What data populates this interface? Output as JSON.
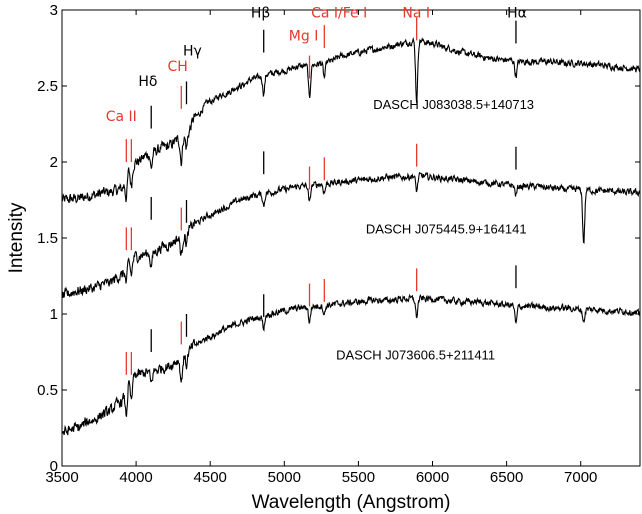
{
  "chart_data": {
    "type": "line",
    "title": "",
    "xlabel": "Wavelength (Angstrom)",
    "ylabel": "Intensity",
    "xlim": [
      3500,
      7400
    ],
    "ylim": [
      0,
      3
    ],
    "x_ticks": [
      3500,
      4000,
      4500,
      5000,
      5500,
      6000,
      6500,
      7000
    ],
    "y_ticks": [
      0,
      0.5,
      1,
      1.5,
      2,
      2.5,
      3
    ],
    "y_tick_labels": [
      "0",
      "0.5",
      "1",
      "1.5",
      "2",
      "2.5",
      "3"
    ],
    "grid": false,
    "series": [
      {
        "name": "DASCH J083038.5+140713",
        "color": "#000000",
        "x": [
          3500,
          3600,
          3700,
          3800,
          3900,
          3950,
          4000,
          4100,
          4200,
          4300,
          4350,
          4400,
          4500,
          4600,
          4700,
          4800,
          4900,
          5000,
          5100,
          5200,
          5300,
          5400,
          5500,
          5600,
          5700,
          5800,
          5900,
          6000,
          6100,
          6200,
          6300,
          6400,
          6500,
          6600,
          6700,
          6800,
          6900,
          7000,
          7100,
          7200,
          7300,
          7400
        ],
        "y": [
          1.75,
          1.76,
          1.78,
          1.8,
          1.82,
          1.95,
          2.0,
          2.06,
          2.1,
          2.15,
          2.2,
          2.3,
          2.4,
          2.45,
          2.5,
          2.55,
          2.58,
          2.6,
          2.63,
          2.64,
          2.66,
          2.7,
          2.72,
          2.74,
          2.76,
          2.78,
          2.8,
          2.78,
          2.75,
          2.72,
          2.7,
          2.68,
          2.67,
          2.66,
          2.66,
          2.66,
          2.65,
          2.65,
          2.64,
          2.63,
          2.62,
          2.61
        ],
        "absorption": [
          [
            3934,
            0.15
          ],
          [
            3968,
            0.12
          ],
          [
            4102,
            0.1
          ],
          [
            4305,
            0.15
          ],
          [
            4340,
            0.1
          ],
          [
            4861,
            0.12
          ],
          [
            5170,
            0.22
          ],
          [
            5270,
            0.1
          ],
          [
            5893,
            0.4
          ],
          [
            6563,
            0.1
          ]
        ]
      },
      {
        "name": "DASCH J075445.9+164141",
        "color": "#000000",
        "x": [
          3500,
          3600,
          3700,
          3800,
          3900,
          3950,
          4000,
          4100,
          4200,
          4300,
          4350,
          4400,
          4500,
          4600,
          4700,
          4800,
          4900,
          5000,
          5100,
          5200,
          5300,
          5400,
          5500,
          5600,
          5700,
          5800,
          5900,
          6000,
          6100,
          6200,
          6300,
          6400,
          6500,
          6600,
          6700,
          6800,
          6900,
          7000,
          7100,
          7200,
          7300,
          7400
        ],
        "y": [
          1.12,
          1.15,
          1.17,
          1.2,
          1.25,
          1.35,
          1.38,
          1.4,
          1.45,
          1.5,
          1.55,
          1.6,
          1.65,
          1.7,
          1.75,
          1.78,
          1.8,
          1.82,
          1.84,
          1.85,
          1.86,
          1.87,
          1.88,
          1.89,
          1.9,
          1.9,
          1.91,
          1.9,
          1.89,
          1.88,
          1.87,
          1.86,
          1.85,
          1.84,
          1.84,
          1.83,
          1.82,
          1.82,
          1.81,
          1.81,
          1.8,
          1.8
        ],
        "absorption": [
          [
            3934,
            0.12
          ],
          [
            3968,
            0.1
          ],
          [
            4102,
            0.08
          ],
          [
            4305,
            0.12
          ],
          [
            4340,
            0.08
          ],
          [
            4861,
            0.08
          ],
          [
            5170,
            0.12
          ],
          [
            5270,
            0.06
          ],
          [
            5893,
            0.1
          ],
          [
            6563,
            0.06
          ],
          [
            7020,
            0.35
          ]
        ]
      },
      {
        "name": "DASCH J073606.5+211411",
        "color": "#000000",
        "x": [
          3500,
          3600,
          3700,
          3800,
          3900,
          3950,
          4000,
          4100,
          4200,
          4300,
          4350,
          4400,
          4500,
          4600,
          4700,
          4800,
          4900,
          5000,
          5100,
          5200,
          5300,
          5400,
          5500,
          5600,
          5700,
          5800,
          5900,
          6000,
          6100,
          6200,
          6300,
          6400,
          6500,
          6600,
          6700,
          6800,
          6900,
          7000,
          7100,
          7200,
          7300,
          7400
        ],
        "y": [
          0.22,
          0.25,
          0.3,
          0.35,
          0.42,
          0.55,
          0.6,
          0.62,
          0.65,
          0.7,
          0.75,
          0.8,
          0.85,
          0.9,
          0.94,
          0.97,
          1.0,
          1.02,
          1.04,
          1.05,
          1.06,
          1.07,
          1.08,
          1.09,
          1.09,
          1.1,
          1.1,
          1.1,
          1.09,
          1.08,
          1.08,
          1.07,
          1.06,
          1.05,
          1.05,
          1.04,
          1.04,
          1.03,
          1.03,
          1.02,
          1.02,
          1.0
        ],
        "absorption": [
          [
            3934,
            0.18
          ],
          [
            3968,
            0.14
          ],
          [
            4102,
            0.08
          ],
          [
            4305,
            0.15
          ],
          [
            4340,
            0.08
          ],
          [
            4861,
            0.08
          ],
          [
            5170,
            0.1
          ],
          [
            5270,
            0.06
          ],
          [
            5893,
            0.12
          ],
          [
            6563,
            0.12
          ],
          [
            7020,
            0.08
          ]
        ]
      }
    ],
    "line_marks": [
      {
        "label": "Ca II",
        "color": "#e8392f",
        "wavelengths": [
          3934,
          3968
        ],
        "label_x": 3900,
        "label_y": 2.27,
        "positions": [
          [
            2.0,
            2.15
          ],
          [
            1.42,
            1.57
          ],
          [
            0.6,
            0.75
          ]
        ]
      },
      {
        "label": "Hδ",
        "color": "#000000",
        "wavelengths": [
          4102
        ],
        "label_x": 4080,
        "label_y": 2.5,
        "positions": [
          [
            2.22,
            2.37
          ],
          [
            1.62,
            1.77
          ],
          [
            0.75,
            0.9
          ]
        ]
      },
      {
        "label": "CH",
        "color": "#e8392f",
        "wavelengths": [
          4305
        ],
        "label_x": 4280,
        "label_y": 2.6,
        "positions": [
          [
            2.35,
            2.5
          ],
          [
            1.55,
            1.7
          ],
          [
            0.8,
            0.95
          ]
        ]
      },
      {
        "label": "Hγ",
        "color": "#000000",
        "wavelengths": [
          4340
        ],
        "label_x": 4380,
        "label_y": 2.7,
        "positions": [
          [
            2.38,
            2.53
          ],
          [
            1.6,
            1.75
          ],
          [
            0.85,
            1.0
          ]
        ]
      },
      {
        "label": "Hβ",
        "color": "#000000",
        "wavelengths": [
          4861
        ],
        "label_x": 4840,
        "label_y": 2.95,
        "positions": [
          [
            2.72,
            2.87
          ],
          [
            1.92,
            2.07
          ],
          [
            0.98,
            1.13
          ]
        ]
      },
      {
        "label": "Mg I",
        "color": "#e8392f",
        "wavelengths": [
          5170
        ],
        "label_x": 5130,
        "label_y": 2.8,
        "positions": [
          [
            2.55,
            2.7
          ],
          [
            1.82,
            1.97
          ],
          [
            1.05,
            1.2
          ]
        ]
      },
      {
        "label": "Ca I/Fe I",
        "color": "#e8392f",
        "wavelengths": [
          5270
        ],
        "label_x": 5370,
        "label_y": 2.95,
        "positions": [
          [
            2.75,
            2.9
          ],
          [
            1.88,
            2.03
          ],
          [
            1.08,
            1.23
          ]
        ]
      },
      {
        "label": "Na I",
        "color": "#e8392f",
        "wavelengths": [
          5893
        ],
        "label_x": 5890,
        "label_y": 2.95,
        "positions": [
          [
            2.8,
            2.95
          ],
          [
            1.97,
            2.12
          ],
          [
            1.15,
            1.3
          ]
        ]
      },
      {
        "label": "Hα",
        "color": "#000000",
        "wavelengths": [
          6563
        ],
        "label_x": 6570,
        "label_y": 2.95,
        "positions": [
          [
            2.78,
            2.93
          ],
          [
            1.95,
            2.1
          ],
          [
            1.17,
            1.32
          ]
        ]
      }
    ],
    "series_labels": [
      {
        "text": "DASCH J083038.5+140713",
        "x": 5600,
        "y": 2.35
      },
      {
        "text": "DASCH J075445.9+164141",
        "x": 5550,
        "y": 1.53
      },
      {
        "text": "DASCH J073606.5+211411",
        "x": 5350,
        "y": 0.7
      }
    ]
  }
}
